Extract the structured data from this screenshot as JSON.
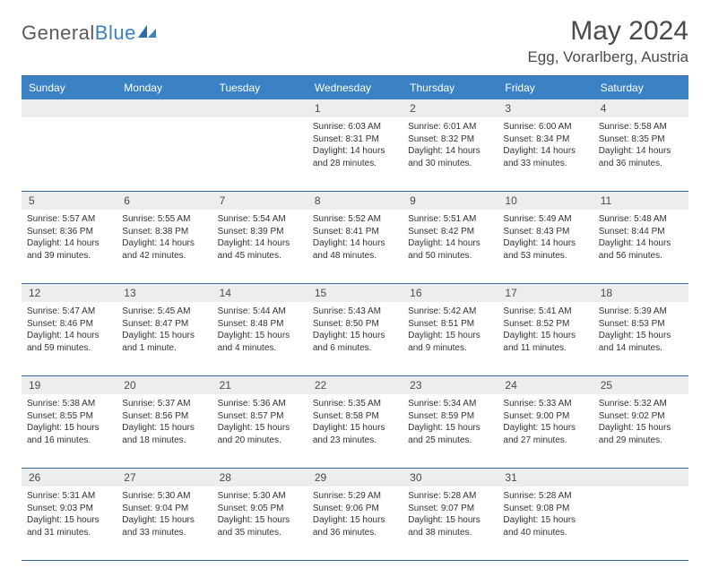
{
  "logo": {
    "word1": "General",
    "word2": "Blue"
  },
  "title": "May 2024",
  "location": "Egg, Vorarlberg, Austria",
  "colors": {
    "header_bg": "#3b82c4",
    "header_text": "#ffffff",
    "daynum_bg": "#eceded",
    "border": "#3b6a9a",
    "text": "#333333",
    "title_text": "#4a4a4a"
  },
  "day_headers": [
    "Sunday",
    "Monday",
    "Tuesday",
    "Wednesday",
    "Thursday",
    "Friday",
    "Saturday"
  ],
  "weeks": [
    {
      "nums": [
        "",
        "",
        "",
        "1",
        "2",
        "3",
        "4"
      ],
      "cells": [
        {
          "sunrise": "",
          "sunset": "",
          "daylight": ""
        },
        {
          "sunrise": "",
          "sunset": "",
          "daylight": ""
        },
        {
          "sunrise": "",
          "sunset": "",
          "daylight": ""
        },
        {
          "sunrise": "Sunrise: 6:03 AM",
          "sunset": "Sunset: 8:31 PM",
          "daylight": "Daylight: 14 hours and 28 minutes."
        },
        {
          "sunrise": "Sunrise: 6:01 AM",
          "sunset": "Sunset: 8:32 PM",
          "daylight": "Daylight: 14 hours and 30 minutes."
        },
        {
          "sunrise": "Sunrise: 6:00 AM",
          "sunset": "Sunset: 8:34 PM",
          "daylight": "Daylight: 14 hours and 33 minutes."
        },
        {
          "sunrise": "Sunrise: 5:58 AM",
          "sunset": "Sunset: 8:35 PM",
          "daylight": "Daylight: 14 hours and 36 minutes."
        }
      ]
    },
    {
      "nums": [
        "5",
        "6",
        "7",
        "8",
        "9",
        "10",
        "11"
      ],
      "cells": [
        {
          "sunrise": "Sunrise: 5:57 AM",
          "sunset": "Sunset: 8:36 PM",
          "daylight": "Daylight: 14 hours and 39 minutes."
        },
        {
          "sunrise": "Sunrise: 5:55 AM",
          "sunset": "Sunset: 8:38 PM",
          "daylight": "Daylight: 14 hours and 42 minutes."
        },
        {
          "sunrise": "Sunrise: 5:54 AM",
          "sunset": "Sunset: 8:39 PM",
          "daylight": "Daylight: 14 hours and 45 minutes."
        },
        {
          "sunrise": "Sunrise: 5:52 AM",
          "sunset": "Sunset: 8:41 PM",
          "daylight": "Daylight: 14 hours and 48 minutes."
        },
        {
          "sunrise": "Sunrise: 5:51 AM",
          "sunset": "Sunset: 8:42 PM",
          "daylight": "Daylight: 14 hours and 50 minutes."
        },
        {
          "sunrise": "Sunrise: 5:49 AM",
          "sunset": "Sunset: 8:43 PM",
          "daylight": "Daylight: 14 hours and 53 minutes."
        },
        {
          "sunrise": "Sunrise: 5:48 AM",
          "sunset": "Sunset: 8:44 PM",
          "daylight": "Daylight: 14 hours and 56 minutes."
        }
      ]
    },
    {
      "nums": [
        "12",
        "13",
        "14",
        "15",
        "16",
        "17",
        "18"
      ],
      "cells": [
        {
          "sunrise": "Sunrise: 5:47 AM",
          "sunset": "Sunset: 8:46 PM",
          "daylight": "Daylight: 14 hours and 59 minutes."
        },
        {
          "sunrise": "Sunrise: 5:45 AM",
          "sunset": "Sunset: 8:47 PM",
          "daylight": "Daylight: 15 hours and 1 minute."
        },
        {
          "sunrise": "Sunrise: 5:44 AM",
          "sunset": "Sunset: 8:48 PM",
          "daylight": "Daylight: 15 hours and 4 minutes."
        },
        {
          "sunrise": "Sunrise: 5:43 AM",
          "sunset": "Sunset: 8:50 PM",
          "daylight": "Daylight: 15 hours and 6 minutes."
        },
        {
          "sunrise": "Sunrise: 5:42 AM",
          "sunset": "Sunset: 8:51 PM",
          "daylight": "Daylight: 15 hours and 9 minutes."
        },
        {
          "sunrise": "Sunrise: 5:41 AM",
          "sunset": "Sunset: 8:52 PM",
          "daylight": "Daylight: 15 hours and 11 minutes."
        },
        {
          "sunrise": "Sunrise: 5:39 AM",
          "sunset": "Sunset: 8:53 PM",
          "daylight": "Daylight: 15 hours and 14 minutes."
        }
      ]
    },
    {
      "nums": [
        "19",
        "20",
        "21",
        "22",
        "23",
        "24",
        "25"
      ],
      "cells": [
        {
          "sunrise": "Sunrise: 5:38 AM",
          "sunset": "Sunset: 8:55 PM",
          "daylight": "Daylight: 15 hours and 16 minutes."
        },
        {
          "sunrise": "Sunrise: 5:37 AM",
          "sunset": "Sunset: 8:56 PM",
          "daylight": "Daylight: 15 hours and 18 minutes."
        },
        {
          "sunrise": "Sunrise: 5:36 AM",
          "sunset": "Sunset: 8:57 PM",
          "daylight": "Daylight: 15 hours and 20 minutes."
        },
        {
          "sunrise": "Sunrise: 5:35 AM",
          "sunset": "Sunset: 8:58 PM",
          "daylight": "Daylight: 15 hours and 23 minutes."
        },
        {
          "sunrise": "Sunrise: 5:34 AM",
          "sunset": "Sunset: 8:59 PM",
          "daylight": "Daylight: 15 hours and 25 minutes."
        },
        {
          "sunrise": "Sunrise: 5:33 AM",
          "sunset": "Sunset: 9:00 PM",
          "daylight": "Daylight: 15 hours and 27 minutes."
        },
        {
          "sunrise": "Sunrise: 5:32 AM",
          "sunset": "Sunset: 9:02 PM",
          "daylight": "Daylight: 15 hours and 29 minutes."
        }
      ]
    },
    {
      "nums": [
        "26",
        "27",
        "28",
        "29",
        "30",
        "31",
        ""
      ],
      "cells": [
        {
          "sunrise": "Sunrise: 5:31 AM",
          "sunset": "Sunset: 9:03 PM",
          "daylight": "Daylight: 15 hours and 31 minutes."
        },
        {
          "sunrise": "Sunrise: 5:30 AM",
          "sunset": "Sunset: 9:04 PM",
          "daylight": "Daylight: 15 hours and 33 minutes."
        },
        {
          "sunrise": "Sunrise: 5:30 AM",
          "sunset": "Sunset: 9:05 PM",
          "daylight": "Daylight: 15 hours and 35 minutes."
        },
        {
          "sunrise": "Sunrise: 5:29 AM",
          "sunset": "Sunset: 9:06 PM",
          "daylight": "Daylight: 15 hours and 36 minutes."
        },
        {
          "sunrise": "Sunrise: 5:28 AM",
          "sunset": "Sunset: 9:07 PM",
          "daylight": "Daylight: 15 hours and 38 minutes."
        },
        {
          "sunrise": "Sunrise: 5:28 AM",
          "sunset": "Sunset: 9:08 PM",
          "daylight": "Daylight: 15 hours and 40 minutes."
        },
        {
          "sunrise": "",
          "sunset": "",
          "daylight": ""
        }
      ]
    }
  ]
}
